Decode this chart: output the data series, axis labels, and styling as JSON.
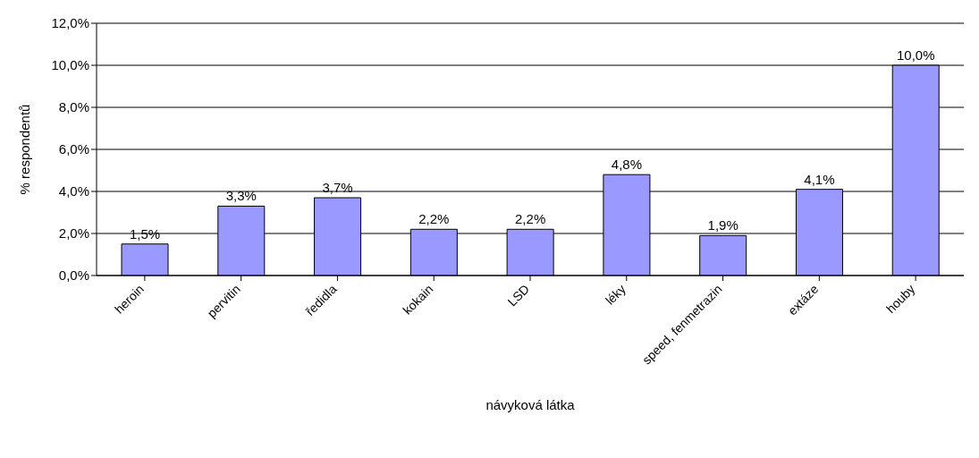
{
  "chart_data": {
    "type": "bar",
    "xlabel": "návyková látka",
    "ylabel": "% respondentů",
    "categories": [
      "heroin",
      "pervitin",
      "ředidla",
      "kokain",
      "LSD",
      "léky",
      "speed, fenmetrazin",
      "extáze",
      "houby"
    ],
    "values": [
      1.5,
      3.3,
      3.7,
      2.2,
      2.2,
      4.8,
      1.9,
      4.1,
      10.0
    ],
    "value_labels": [
      "1,5%",
      "3,3%",
      "3,7%",
      "2,2%",
      "2,2%",
      "4,8%",
      "1,9%",
      "4,1%",
      "10,0%"
    ],
    "color": "#9999ff",
    "ylim": [
      0,
      12
    ],
    "yticks": [
      {
        "value": 0,
        "label": "0,0%"
      },
      {
        "value": 2,
        "label": "2,0%"
      },
      {
        "value": 4,
        "label": "4,0%"
      },
      {
        "value": 6,
        "label": "6,0%"
      },
      {
        "value": 8,
        "label": "8,0%"
      },
      {
        "value": 10,
        "label": "10,0%"
      },
      {
        "value": 12,
        "label": "12,0%"
      }
    ],
    "grid": "y"
  }
}
